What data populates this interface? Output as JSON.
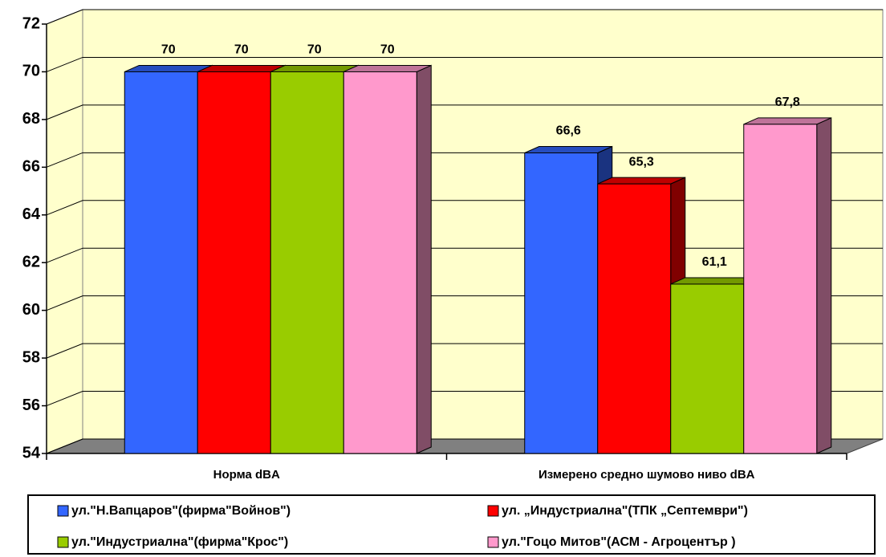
{
  "chart_data": {
    "type": "bar3d",
    "categories": [
      "Норма dBA",
      "Измерено средно шумово ниво dBA"
    ],
    "series": [
      {
        "name": "ул.\"Н.Вапцаров\"(фирма\"Войнов\")",
        "color": "#3366ff",
        "values": [
          70,
          66.6
        ],
        "value_labels": [
          "70",
          "66,6"
        ]
      },
      {
        "name": "ул. „Индустриална\"(ТПК „Септември\")",
        "color": "#ff0000",
        "values": [
          70,
          65.3
        ],
        "value_labels": [
          "70",
          "65,3"
        ]
      },
      {
        "name": "ул.\"Индустриална\"(фирма\"Крос\")",
        "color": "#99cc00",
        "values": [
          70,
          61.1
        ],
        "value_labels": [
          "70",
          "61,1"
        ]
      },
      {
        "name": "ул.\"Гоцо Митов\"(АСМ - Агроцентър )",
        "color": "#ff99cc",
        "values": [
          70,
          67.8
        ],
        "value_labels": [
          "70",
          "67,8"
        ]
      }
    ],
    "ylim": [
      54,
      72
    ],
    "yticks": [
      54,
      56,
      58,
      60,
      62,
      64,
      66,
      68,
      70,
      72
    ],
    "grid": true
  }
}
